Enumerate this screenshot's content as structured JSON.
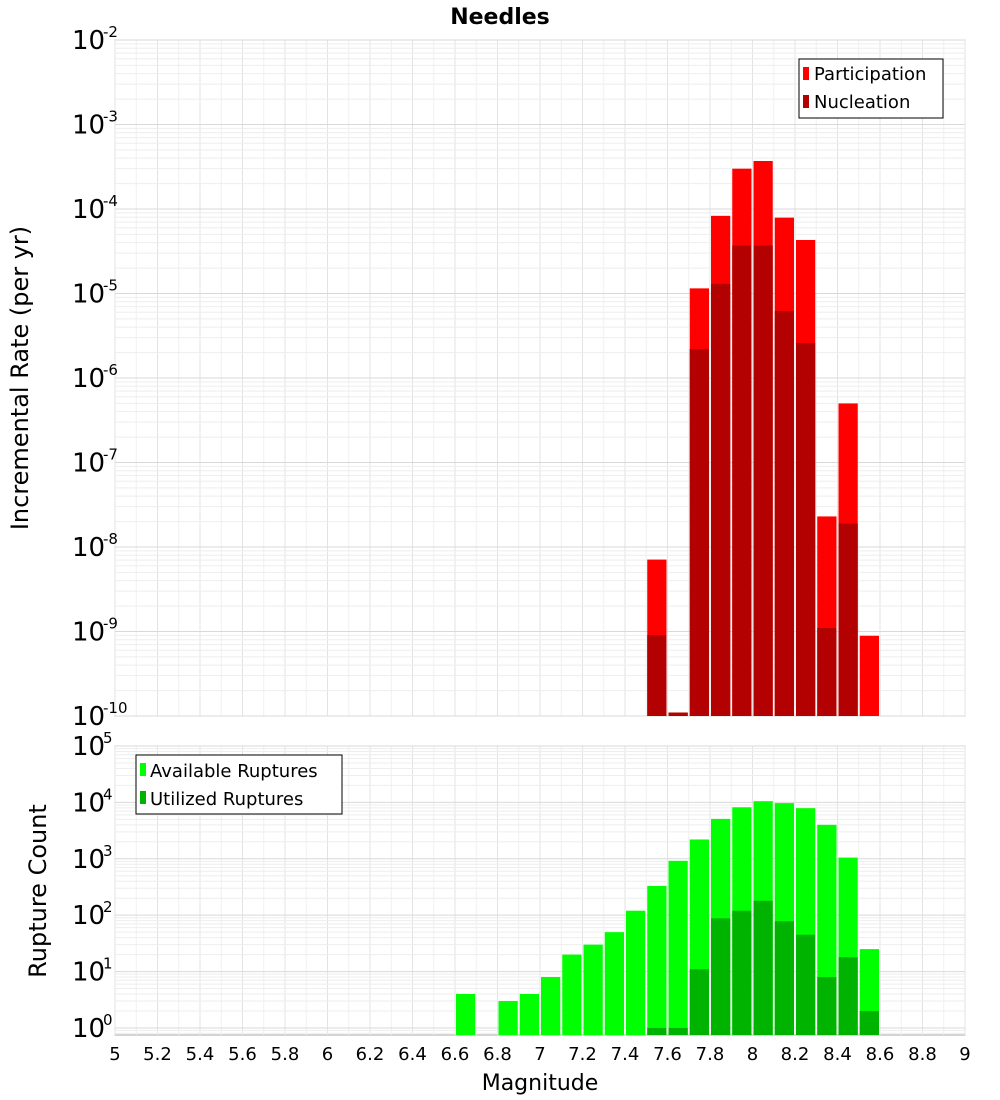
{
  "chart_data": [
    {
      "type": "bar",
      "title": "Needles",
      "xlabel": "",
      "ylabel": "Incremental Rate (per yr)",
      "yscale": "log",
      "ylim": [
        1e-10,
        0.01
      ],
      "xlim": [
        5,
        9
      ],
      "legend": "top-right",
      "grid": true,
      "x": [
        7.55,
        7.65,
        7.75,
        7.85,
        7.95,
        8.05,
        8.15,
        8.25,
        8.35,
        8.45,
        8.55
      ],
      "series": [
        {
          "name": "Participation",
          "color": "#ff0000",
          "values": [
            7.1e-09,
            1.1e-10,
            1.15e-05,
            8.3e-05,
            0.0003,
            0.00037,
            7.9e-05,
            4.3e-05,
            2.3e-08,
            5e-07,
            8.9e-10
          ]
        },
        {
          "name": "Nucleation",
          "color": "#b30000",
          "values": [
            9.1e-10,
            1.1e-10,
            2.2e-06,
            1.3e-05,
            3.7e-05,
            3.7e-05,
            6.2e-06,
            2.6e-06,
            1.1e-09,
            1.9e-08,
            null
          ]
        }
      ]
    },
    {
      "type": "bar",
      "title": "",
      "xlabel": "Magnitude",
      "ylabel": "Rupture Count",
      "yscale": "log",
      "ylim": [
        0.75,
        100000.0
      ],
      "xlim": [
        5,
        9
      ],
      "legend": "top-left",
      "grid": true,
      "x": [
        6.65,
        6.75,
        6.85,
        6.95,
        7.05,
        7.15,
        7.25,
        7.35,
        7.45,
        7.55,
        7.65,
        7.75,
        7.85,
        7.95,
        8.05,
        8.15,
        8.25,
        8.35,
        8.45,
        8.55
      ],
      "series": [
        {
          "name": "Available Ruptures",
          "color": "#00ff00",
          "values": [
            4,
            null,
            3,
            4,
            8,
            20,
            30,
            50,
            120,
            330,
            920,
            2200,
            5100,
            8200,
            10500,
            9700,
            7900,
            4000,
            1050,
            25
          ]
        },
        {
          "name": "Utilized Ruptures",
          "color": "#00b300",
          "values": [
            null,
            null,
            null,
            null,
            null,
            null,
            null,
            null,
            null,
            1,
            1,
            11,
            88,
            120,
            180,
            78,
            45,
            8,
            18,
            2
          ]
        }
      ]
    }
  ],
  "x_ticks": [
    "5",
    "5.2",
    "5.4",
    "5.6",
    "5.8",
    "6",
    "6.2",
    "6.4",
    "6.6",
    "6.8",
    "7",
    "7.2",
    "7.4",
    "7.6",
    "7.8",
    "8",
    "8.2",
    "8.4",
    "8.6",
    "8.8",
    "9"
  ],
  "top_y_ticks": [
    {
      "base": "10",
      "exp": "-2"
    },
    {
      "base": "10",
      "exp": "-3"
    },
    {
      "base": "10",
      "exp": "-4"
    },
    {
      "base": "10",
      "exp": "-5"
    },
    {
      "base": "10",
      "exp": "-6"
    },
    {
      "base": "10",
      "exp": "-7"
    },
    {
      "base": "10",
      "exp": "-8"
    },
    {
      "base": "10",
      "exp": "-9"
    },
    {
      "base": "10",
      "exp": "-10"
    }
  ],
  "bottom_y_ticks": [
    {
      "base": "10",
      "exp": "5"
    },
    {
      "base": "10",
      "exp": "4"
    },
    {
      "base": "10",
      "exp": "3"
    },
    {
      "base": "10",
      "exp": "2"
    },
    {
      "base": "10",
      "exp": "1"
    },
    {
      "base": "10",
      "exp": "0"
    }
  ]
}
